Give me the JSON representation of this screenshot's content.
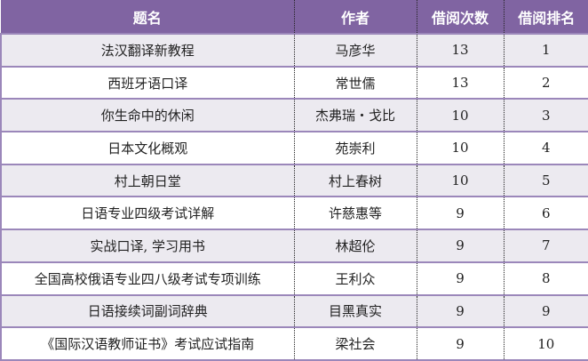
{
  "headers": [
    "题名",
    "作者",
    "借阅次数",
    "借阅排名"
  ],
  "rows": [
    {
      "title": "法汉翻译新教程",
      "author": "马彦华",
      "count": "13",
      "rank": "1"
    },
    {
      "title": "西班牙语口译",
      "author": "常世儒",
      "count": "13",
      "rank": "2"
    },
    {
      "title": "你生命中的休闲",
      "author": "杰弗瑞・戈比",
      "count": "10",
      "rank": "3"
    },
    {
      "title": "日本文化概观",
      "author": "苑崇利",
      "count": "10",
      "rank": "4"
    },
    {
      "title": "村上朝日堂",
      "author": "村上春树",
      "count": "10",
      "rank": "5"
    },
    {
      "title": "日语专业四级考试详解",
      "author": "许慈惠等",
      "count": "9",
      "rank": "6"
    },
    {
      "title": "实战口译, 学习用书",
      "author": "林超伦",
      "count": "9",
      "rank": "7"
    },
    {
      "title": "全国高校俄语专业四八级考试专项训练",
      "author": "王利众",
      "count": "9",
      "rank": "8"
    },
    {
      "title": "日语接续词副词辞典",
      "author": "目黑真实",
      "count": "9",
      "rank": "9"
    },
    {
      "title": "《国际汉语教师证书》考试应试指南",
      "author": "梁社会",
      "count": "9",
      "rank": "10"
    }
  ],
  "colors": {
    "header": "#8064A2",
    "row_alt": "#ECEAF0",
    "border": "#9B87BA"
  }
}
